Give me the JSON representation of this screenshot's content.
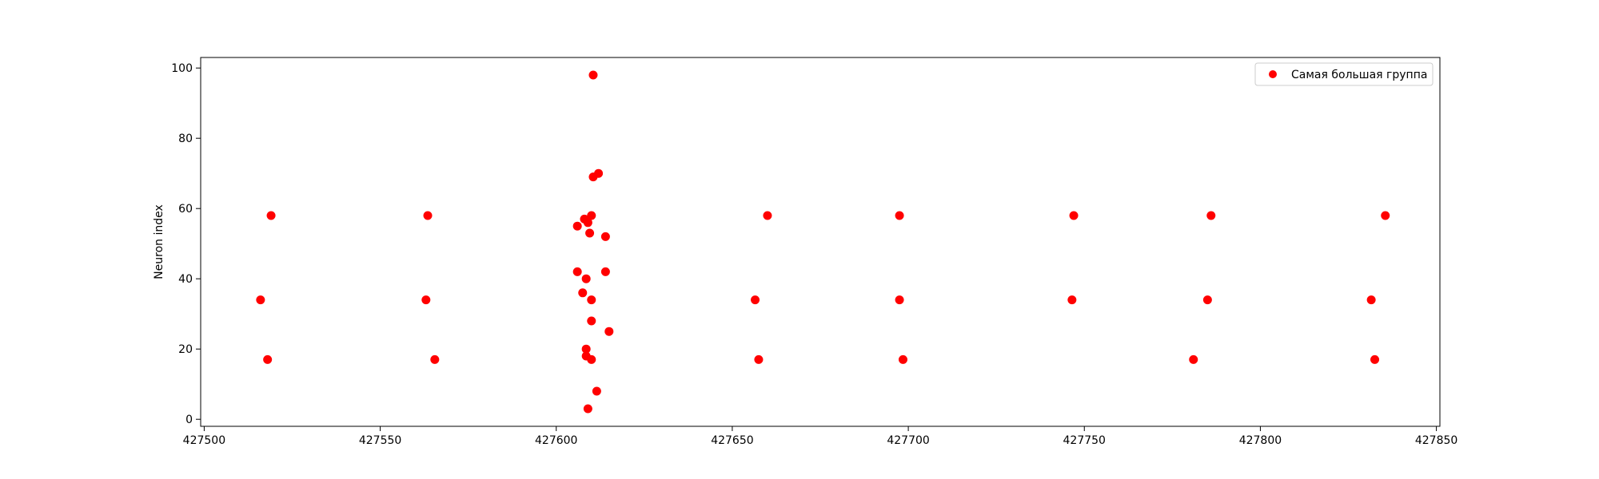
{
  "chart_data": {
    "type": "scatter",
    "title": "",
    "xlabel": "",
    "ylabel": "Neuron index",
    "xlim": [
      427499,
      427851
    ],
    "ylim": [
      -2,
      103
    ],
    "xticks": [
      427500,
      427550,
      427600,
      427650,
      427700,
      427750,
      427800,
      427850
    ],
    "yticks": [
      0,
      20,
      40,
      60,
      80,
      100
    ],
    "grid": false,
    "legend": {
      "position": "top-right"
    },
    "series": [
      {
        "name": "Самая большая группа",
        "color": "#ff0000",
        "marker": "circle",
        "points": [
          {
            "x": 427516,
            "y": 34
          },
          {
            "x": 427518,
            "y": 17
          },
          {
            "x": 427519,
            "y": 58
          },
          {
            "x": 427563,
            "y": 34
          },
          {
            "x": 427563.5,
            "y": 58
          },
          {
            "x": 427565.5,
            "y": 17
          },
          {
            "x": 427606,
            "y": 55
          },
          {
            "x": 427606,
            "y": 42
          },
          {
            "x": 427607.5,
            "y": 36
          },
          {
            "x": 427608,
            "y": 57
          },
          {
            "x": 427608.5,
            "y": 40
          },
          {
            "x": 427608.5,
            "y": 20
          },
          {
            "x": 427608.5,
            "y": 18
          },
          {
            "x": 427609,
            "y": 56
          },
          {
            "x": 427609,
            "y": 3
          },
          {
            "x": 427609.5,
            "y": 53
          },
          {
            "x": 427610,
            "y": 58
          },
          {
            "x": 427610,
            "y": 34
          },
          {
            "x": 427610,
            "y": 28
          },
          {
            "x": 427610,
            "y": 17
          },
          {
            "x": 427610.5,
            "y": 69
          },
          {
            "x": 427610.5,
            "y": 98
          },
          {
            "x": 427611.5,
            "y": 8
          },
          {
            "x": 427612,
            "y": 70
          },
          {
            "x": 427614,
            "y": 52
          },
          {
            "x": 427614,
            "y": 42
          },
          {
            "x": 427615,
            "y": 25
          },
          {
            "x": 427656.5,
            "y": 34
          },
          {
            "x": 427657.5,
            "y": 17
          },
          {
            "x": 427660,
            "y": 58
          },
          {
            "x": 427697.5,
            "y": 34
          },
          {
            "x": 427697.5,
            "y": 58
          },
          {
            "x": 427698.5,
            "y": 17
          },
          {
            "x": 427746.5,
            "y": 34
          },
          {
            "x": 427747,
            "y": 58
          },
          {
            "x": 427781,
            "y": 17
          },
          {
            "x": 427785,
            "y": 34
          },
          {
            "x": 427786,
            "y": 58
          },
          {
            "x": 427831.5,
            "y": 34
          },
          {
            "x": 427832.5,
            "y": 17
          },
          {
            "x": 427835.5,
            "y": 58
          }
        ]
      }
    ]
  }
}
